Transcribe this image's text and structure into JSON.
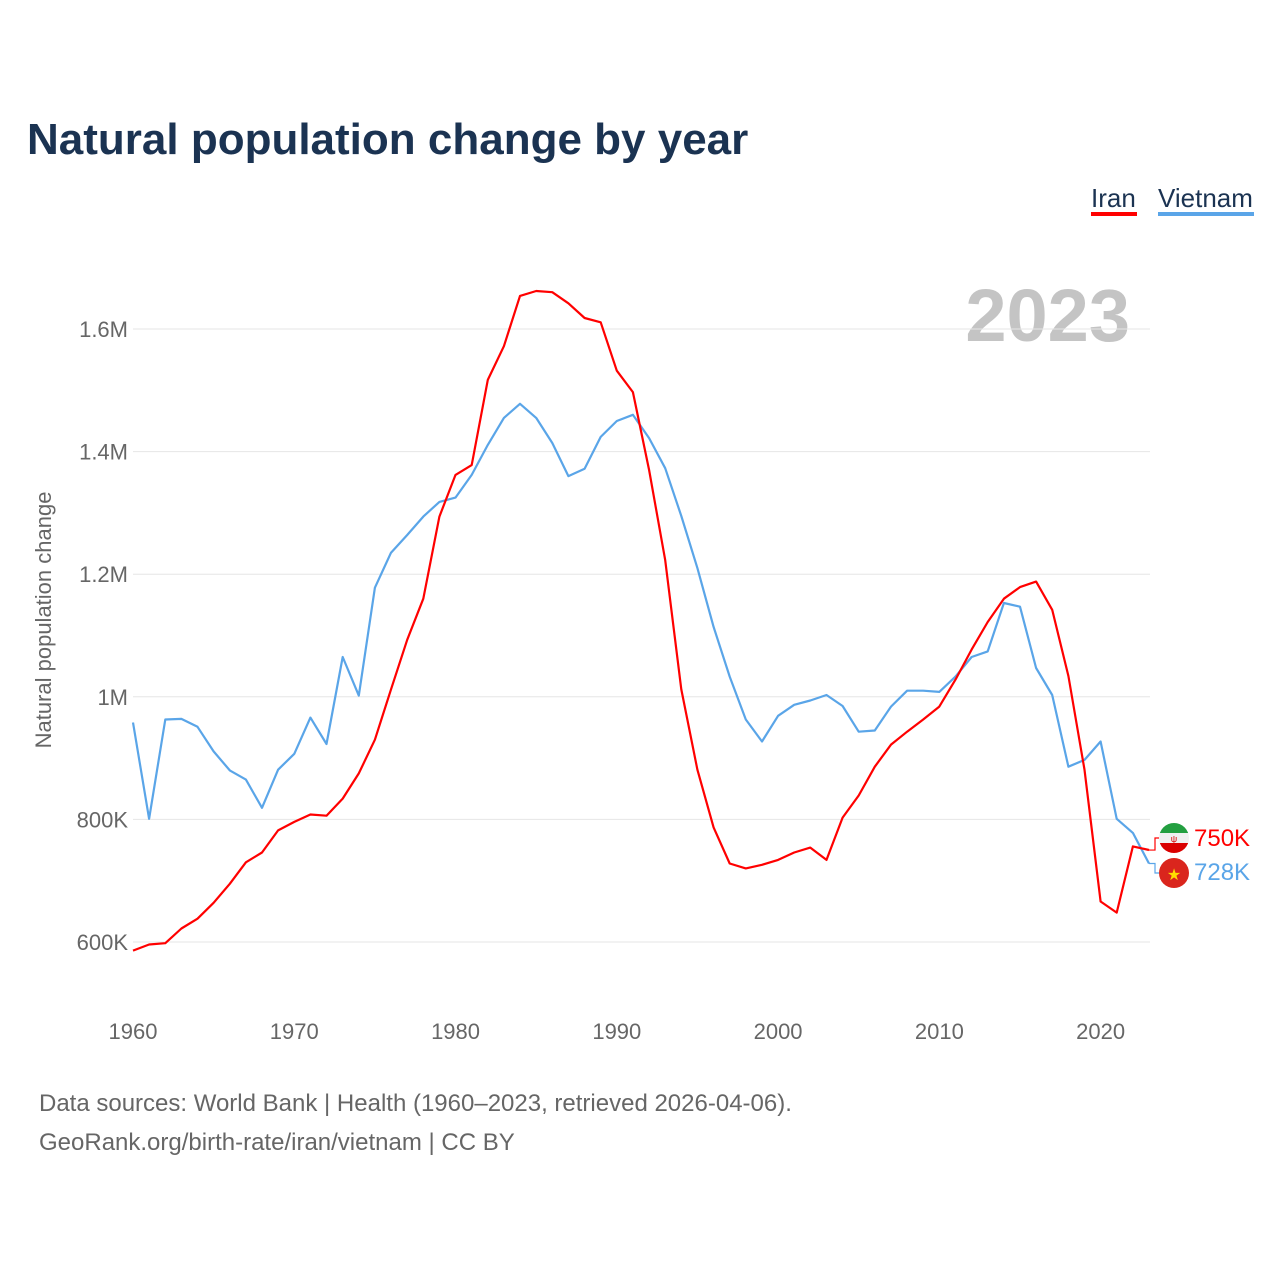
{
  "title": "Natural population change by year",
  "year_watermark": "2023",
  "legend": [
    {
      "label": "Iran",
      "color": "#ff0000"
    },
    {
      "label": "Vietnam",
      "color": "#5aa5e8"
    }
  ],
  "end_labels": {
    "iran": "750K",
    "vietnam": "728K"
  },
  "footer": {
    "line1": "Data sources: World Bank | Health (1960–2023, retrieved 2026-04-06).",
    "line2": "GeoRank.org/birth-rate/iran/vietnam | CC BY"
  },
  "chart_data": {
    "type": "line",
    "title": "Natural population change by year",
    "xlabel": "",
    "ylabel": "Natural population change",
    "xlim": [
      1960,
      2023
    ],
    "ylim": [
      600000,
      1600000
    ],
    "grid": true,
    "legend_position": "top-right",
    "x_ticks": [
      {
        "value": 1960,
        "label": "1960"
      },
      {
        "value": 1970,
        "label": "1970"
      },
      {
        "value": 1980,
        "label": "1980"
      },
      {
        "value": 1990,
        "label": "1990"
      },
      {
        "value": 2000,
        "label": "2000"
      },
      {
        "value": 2010,
        "label": "2010"
      },
      {
        "value": 2020,
        "label": "2020"
      }
    ],
    "y_ticks": [
      {
        "value": 600000,
        "label": "600K"
      },
      {
        "value": 800000,
        "label": "800K"
      },
      {
        "value": 1000000,
        "label": "1M"
      },
      {
        "value": 1200000,
        "label": "1.2M"
      },
      {
        "value": 1400000,
        "label": "1.4M"
      },
      {
        "value": 1600000,
        "label": "1.6M"
      }
    ],
    "x_start": 1960,
    "series": [
      {
        "name": "Iran",
        "color": "#ff0000",
        "values": [
          586000,
          596000,
          598000,
          622000,
          638000,
          664000,
          695000,
          730000,
          746000,
          782000,
          796000,
          808000,
          806000,
          834000,
          875000,
          930000,
          1012000,
          1093000,
          1160000,
          1294000,
          1362000,
          1378000,
          1517000,
          1572000,
          1654000,
          1662000,
          1660000,
          1642000,
          1618000,
          1611000,
          1532000,
          1497000,
          1370000,
          1223000,
          1012000,
          881000,
          787000,
          728000,
          720000,
          726000,
          734000,
          746000,
          754000,
          734000,
          803000,
          839000,
          886000,
          922000,
          943000,
          963000,
          984000,
          1028000,
          1077000,
          1122000,
          1160000,
          1179000,
          1188000,
          1142000,
          1034000,
          881000,
          666000,
          648000,
          756000,
          750000
        ]
      },
      {
        "name": "Vietnam",
        "color": "#5aa5e8",
        "values": [
          958000,
          801000,
          963000,
          964000,
          951000,
          911000,
          880000,
          865000,
          819000,
          881000,
          907000,
          966000,
          923000,
          1065000,
          1002000,
          1178000,
          1235000,
          1264000,
          1294000,
          1318000,
          1325000,
          1362000,
          1411000,
          1455000,
          1478000,
          1455000,
          1414000,
          1360000,
          1372000,
          1424000,
          1450000,
          1460000,
          1422000,
          1373000,
          1295000,
          1210000,
          1114000,
          1033000,
          963000,
          927000,
          969000,
          987000,
          994000,
          1003000,
          985000,
          943000,
          945000,
          984000,
          1010000,
          1010000,
          1008000,
          1033000,
          1065000,
          1074000,
          1153000,
          1147000,
          1047000,
          1003000,
          886000,
          897000,
          927000,
          801000,
          778000,
          728000
        ]
      }
    ]
  }
}
